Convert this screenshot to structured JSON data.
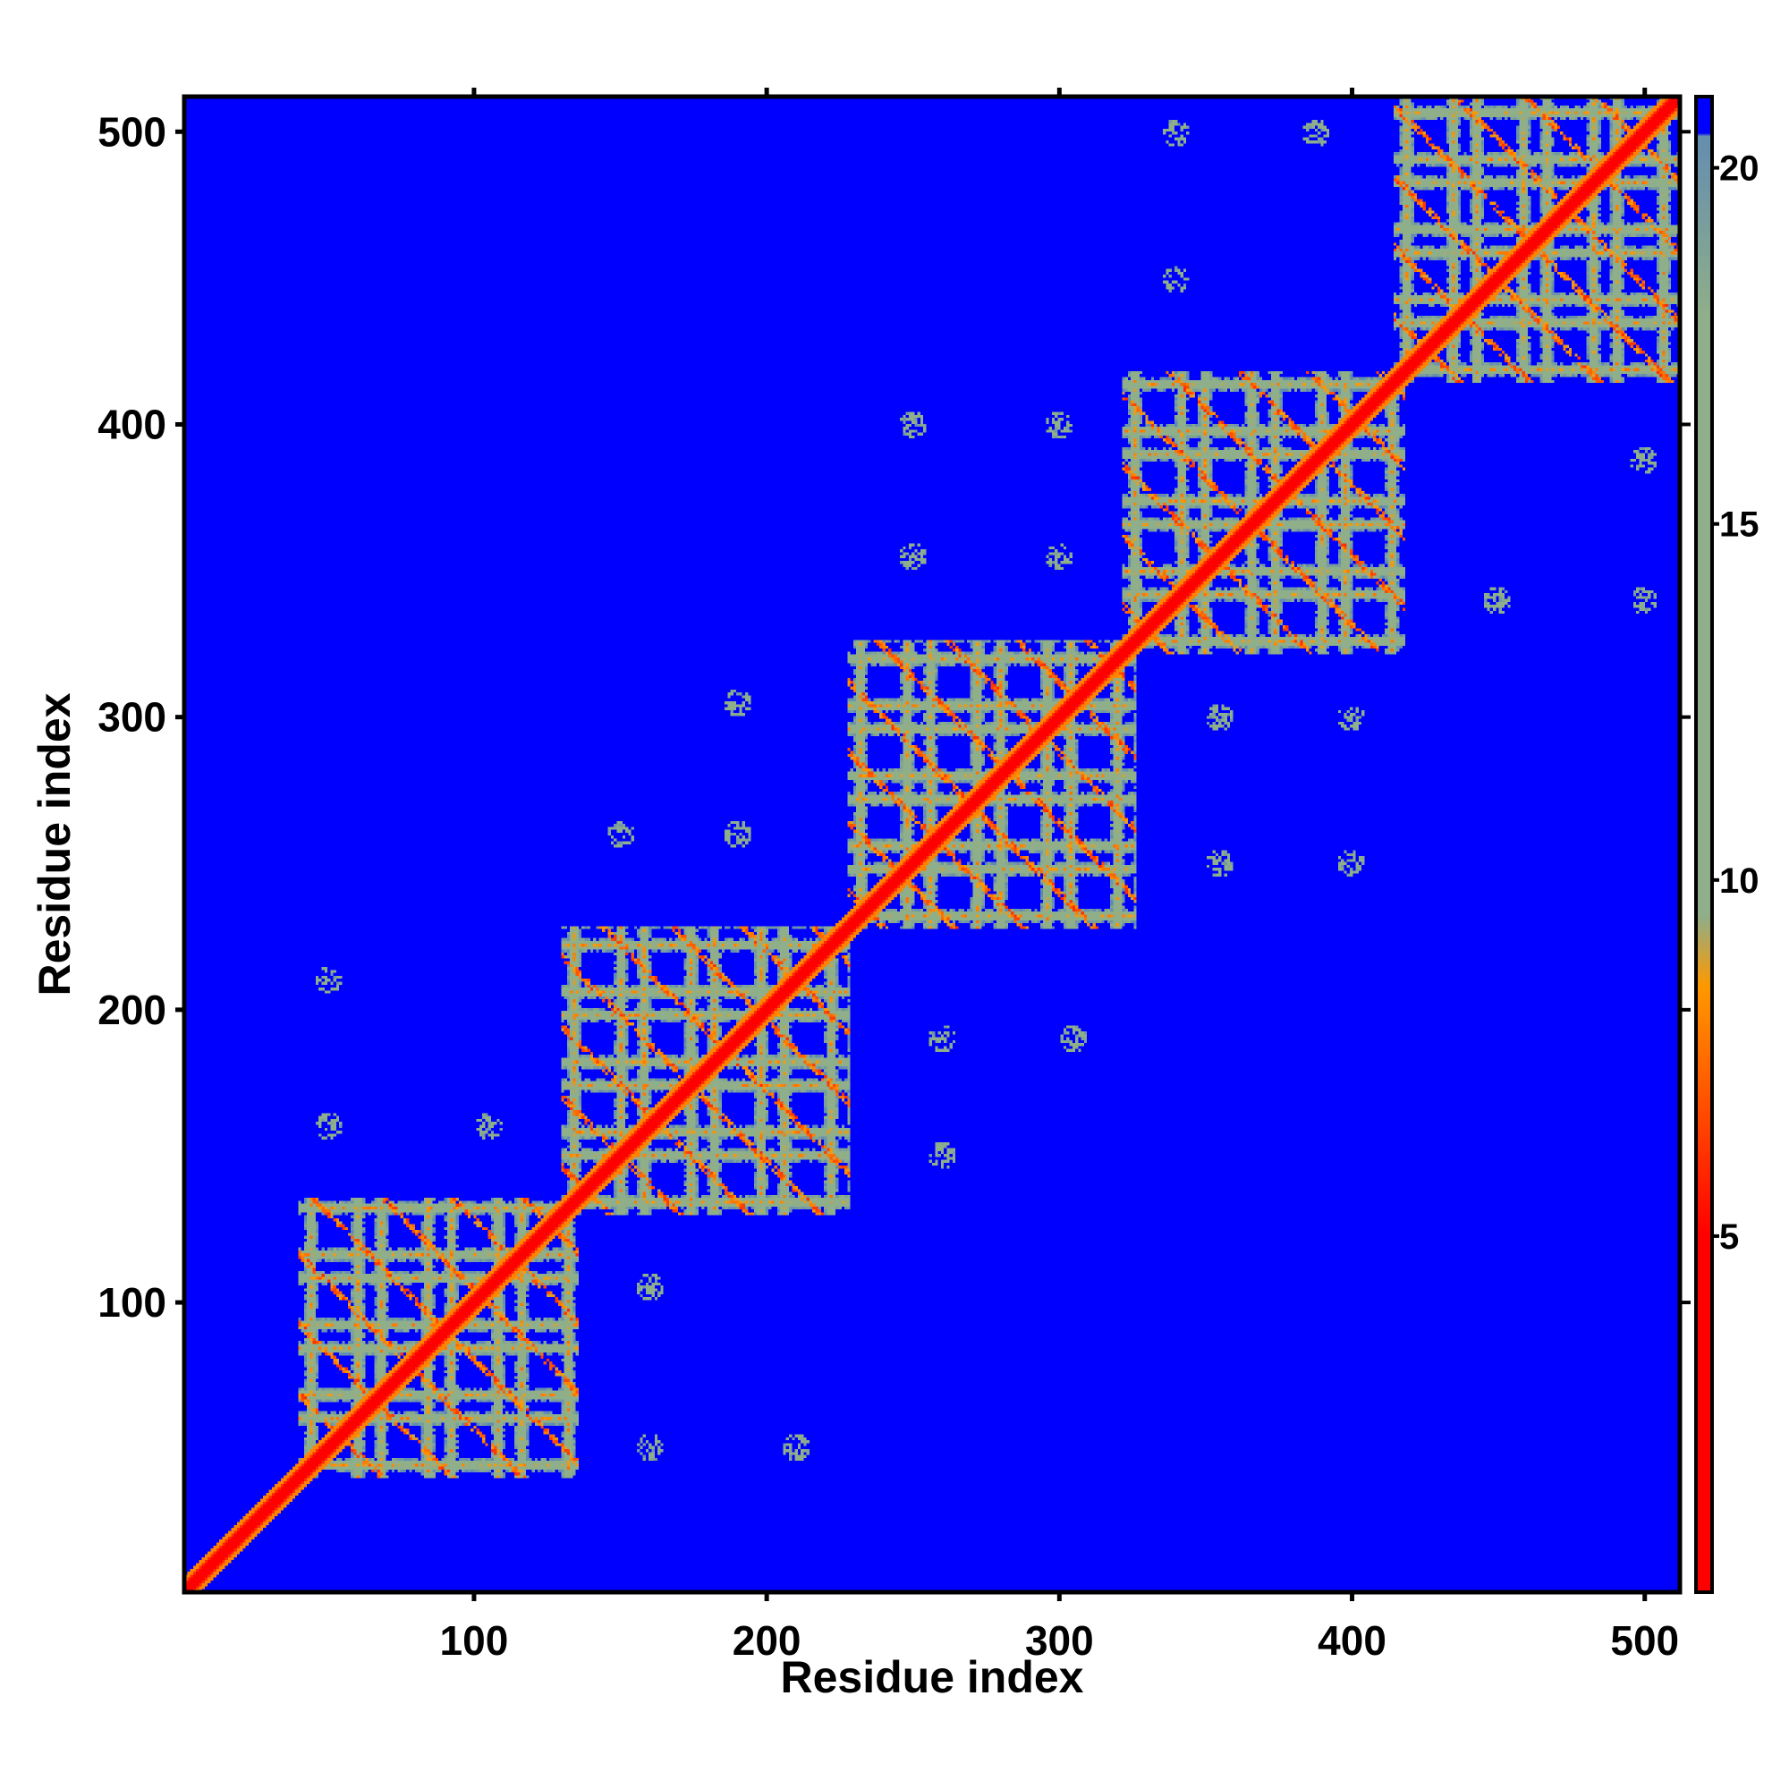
{
  "chart_data": {
    "type": "heatmap",
    "title": "",
    "xlabel": "Residue index",
    "ylabel": "Residue index",
    "xlim": [
      1,
      512
    ],
    "ylim": [
      1,
      512
    ],
    "xticks": [
      100,
      200,
      300,
      400,
      500
    ],
    "yticks": [
      100,
      200,
      300,
      400,
      500
    ],
    "colorbar": {
      "ticks": [
        5,
        10,
        15,
        20
      ],
      "range": [
        0,
        21
      ],
      "colors": {
        "low": "#ff0000",
        "mid_low": "#ff9900",
        "mid": "#8fae8a",
        "high": "#5b86b8",
        "background": "#0000ff"
      }
    },
    "domains": [
      {
        "start": 40,
        "end": 135
      },
      {
        "start": 130,
        "end": 228
      },
      {
        "start": 228,
        "end": 326
      },
      {
        "start": 322,
        "end": 418
      },
      {
        "start": 415,
        "end": 512
      }
    ],
    "off_diagonal_spots": [
      {
        "x": 50,
        "y": 210
      },
      {
        "x": 50,
        "y": 160
      },
      {
        "x": 105,
        "y": 160
      },
      {
        "x": 160,
        "y": 50
      },
      {
        "x": 210,
        "y": 50
      },
      {
        "x": 160,
        "y": 105
      },
      {
        "x": 150,
        "y": 260
      },
      {
        "x": 190,
        "y": 260
      },
      {
        "x": 190,
        "y": 305
      },
      {
        "x": 260,
        "y": 190
      },
      {
        "x": 260,
        "y": 150
      },
      {
        "x": 305,
        "y": 190
      },
      {
        "x": 250,
        "y": 400
      },
      {
        "x": 300,
        "y": 400
      },
      {
        "x": 250,
        "y": 355
      },
      {
        "x": 300,
        "y": 355
      },
      {
        "x": 400,
        "y": 250
      },
      {
        "x": 355,
        "y": 250
      },
      {
        "x": 355,
        "y": 300
      },
      {
        "x": 400,
        "y": 300
      },
      {
        "x": 340,
        "y": 500
      },
      {
        "x": 388,
        "y": 500
      },
      {
        "x": 340,
        "y": 450
      },
      {
        "x": 450,
        "y": 340
      },
      {
        "x": 500,
        "y": 340
      },
      {
        "x": 500,
        "y": 388
      }
    ]
  }
}
